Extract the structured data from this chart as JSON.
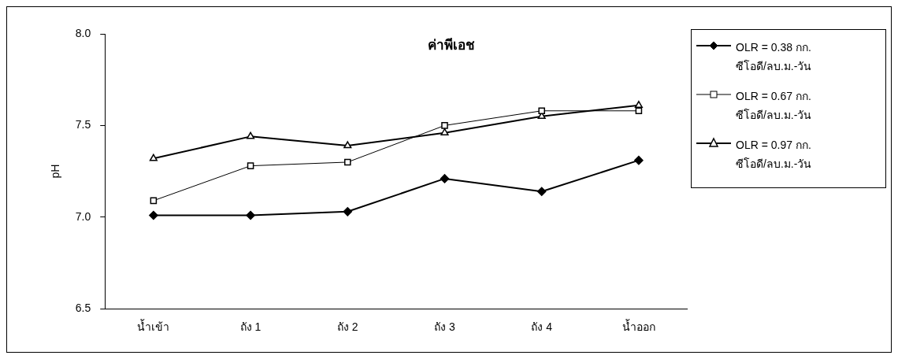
{
  "chart_data": {
    "type": "line",
    "title": "ค่าพีเอช",
    "ylabel": "pH",
    "categories": [
      "น้ำเข้า",
      "ถัง 1",
      "ถัง 2",
      "ถัง 3",
      "ถัง 4",
      "น้ำออก"
    ],
    "series": [
      {
        "name": "OLR = 0.38 กก. ซีโอดี/ลบ.ม.-วัน",
        "color": "#000000",
        "marker": "diamond",
        "values": [
          7.01,
          7.01,
          7.03,
          7.21,
          7.14,
          7.31
        ]
      },
      {
        "name": "OLR = 0.67 กก. ซีโอดี/ลบ.ม.-วัน",
        "color": "#000000",
        "marker": "square",
        "values": [
          7.09,
          7.28,
          7.3,
          7.5,
          7.58,
          7.58
        ]
      },
      {
        "name": "OLR = 0.97 กก. ซีโอดี/ลบ.ม.-วัน",
        "color": "#000000",
        "marker": "triangle",
        "values": [
          7.32,
          7.44,
          7.39,
          7.46,
          7.55,
          7.61
        ]
      }
    ],
    "ylim": [
      6.5,
      8.0
    ],
    "yticks": [
      {
        "value": 6.5,
        "label": "6.5"
      },
      {
        "value": 7.0,
        "label": "7.0"
      },
      {
        "value": 7.5,
        "label": "7.5"
      },
      {
        "value": 8.0,
        "label": "8.0"
      }
    ],
    "grid": false,
    "legend": "right"
  }
}
